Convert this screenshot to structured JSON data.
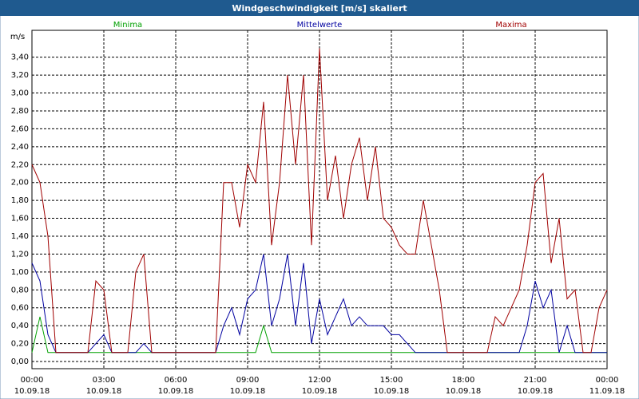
{
  "chart_data": {
    "type": "line",
    "title": "Windgeschwindigkeit [m/s] skaliert",
    "y_label": "m/s",
    "x": [
      0,
      20,
      40,
      60,
      80,
      100,
      120,
      140,
      160,
      180,
      200,
      220,
      240,
      260,
      280,
      300,
      320,
      340,
      360,
      380,
      400,
      420,
      440,
      460,
      480,
      500,
      520,
      540,
      560,
      580,
      600,
      620,
      640,
      660,
      680,
      700,
      720,
      740,
      760,
      780,
      800,
      820,
      840,
      860,
      880,
      900,
      920,
      940,
      960,
      980,
      1000,
      1020,
      1040,
      1060,
      1080,
      1100,
      1120,
      1140,
      1160,
      1180,
      1200,
      1220,
      1240,
      1260,
      1280,
      1300,
      1320,
      1340,
      1360,
      1380,
      1400,
      1420,
      1440
    ],
    "series": [
      {
        "name": "Minima",
        "color": "#00a000",
        "values": [
          0.1,
          0.5,
          0.1,
          0.1,
          0.1,
          0.1,
          0.1,
          0.1,
          0.1,
          0.1,
          0.1,
          0.1,
          0.1,
          0.1,
          0.1,
          0.1,
          0.1,
          0.1,
          0.1,
          0.1,
          0.1,
          0.1,
          0.1,
          0.1,
          0.1,
          0.1,
          0.1,
          0.1,
          0.1,
          0.4,
          0.1,
          0.1,
          0.1,
          0.1,
          0.1,
          0.1,
          0.1,
          0.1,
          0.1,
          0.1,
          0.1,
          0.1,
          0.1,
          0.1,
          0.1,
          0.1,
          0.1,
          0.1,
          0.1,
          0.1,
          0.1,
          0.1,
          0.1,
          0.1,
          0.1,
          0.1,
          0.1,
          0.1,
          0.1,
          0.1,
          0.1,
          0.1,
          0.1,
          0.1,
          0.1,
          0.1,
          0.1,
          0.1,
          0.1,
          0.1,
          0.1,
          0.1,
          0.1
        ]
      },
      {
        "name": "Mittelwerte",
        "color": "#0000a0",
        "values": [
          1.1,
          0.9,
          0.3,
          0.1,
          0.1,
          0.1,
          0.1,
          0.1,
          0.2,
          0.3,
          0.1,
          0.1,
          0.1,
          0.1,
          0.2,
          0.1,
          0.1,
          0.1,
          0.1,
          0.1,
          0.1,
          0.1,
          0.1,
          0.1,
          0.4,
          0.6,
          0.3,
          0.7,
          0.8,
          1.2,
          0.4,
          0.7,
          1.2,
          0.4,
          1.1,
          0.2,
          0.7,
          0.3,
          0.5,
          0.7,
          0.4,
          0.5,
          0.4,
          0.4,
          0.4,
          0.3,
          0.3,
          0.2,
          0.1,
          0.1,
          0.1,
          0.1,
          0.1,
          0.1,
          0.1,
          0.1,
          0.1,
          0.1,
          0.1,
          0.1,
          0.1,
          0.1,
          0.4,
          0.9,
          0.6,
          0.8,
          0.1,
          0.4,
          0.1,
          0.1,
          0.1,
          0.1,
          0.1
        ]
      },
      {
        "name": "Maxima",
        "color": "#a00000",
        "values": [
          2.2,
          2.0,
          1.4,
          0.1,
          0.1,
          0.1,
          0.1,
          0.1,
          0.9,
          0.8,
          0.1,
          0.1,
          0.1,
          1.0,
          1.2,
          0.1,
          0.1,
          0.1,
          0.1,
          0.1,
          0.1,
          0.1,
          0.1,
          0.1,
          2.0,
          2.0,
          1.5,
          2.2,
          2.0,
          2.9,
          1.3,
          2.0,
          3.2,
          2.2,
          3.2,
          1.3,
          3.5,
          1.8,
          2.3,
          1.6,
          2.2,
          2.5,
          1.8,
          2.4,
          1.6,
          1.5,
          1.3,
          1.2,
          1.2,
          1.8,
          1.3,
          0.8,
          0.1,
          0.1,
          0.1,
          0.1,
          0.1,
          0.1,
          0.5,
          0.4,
          0.6,
          0.8,
          1.3,
          2.0,
          2.1,
          1.1,
          1.6,
          0.7,
          0.8,
          0.1,
          0.1,
          0.6,
          0.8
        ]
      }
    ],
    "xlim": [
      0,
      1440
    ],
    "xticks": [
      {
        "value": 0,
        "label": [
          "00:00",
          "10.09.18"
        ]
      },
      {
        "value": 180,
        "label": [
          "03:00",
          "10.09.18"
        ]
      },
      {
        "value": 360,
        "label": [
          "06:00",
          "10.09.18"
        ]
      },
      {
        "value": 540,
        "label": [
          "09:00",
          "10.09.18"
        ]
      },
      {
        "value": 720,
        "label": [
          "12:00",
          "10.09.18"
        ]
      },
      {
        "value": 900,
        "label": [
          "15:00",
          "10.09.18"
        ]
      },
      {
        "value": 1080,
        "label": [
          "18:00",
          "10.09.18"
        ]
      },
      {
        "value": 1260,
        "label": [
          "21:00",
          "10.09.18"
        ]
      },
      {
        "value": 1440,
        "label": [
          "00:00",
          "11.09.18"
        ]
      }
    ],
    "ylim": [
      -0.08,
      3.7
    ],
    "yticks": [
      {
        "value": 0,
        "label": "0,00"
      },
      {
        "value": 0.2,
        "label": "0,20"
      },
      {
        "value": 0.4,
        "label": "0,40"
      },
      {
        "value": 0.6,
        "label": "0,60"
      },
      {
        "value": 0.8,
        "label": "0,80"
      },
      {
        "value": 1,
        "label": "1,00"
      },
      {
        "value": 1.2,
        "label": "1,20"
      },
      {
        "value": 1.4,
        "label": "1,40"
      },
      {
        "value": 1.6,
        "label": "1,60"
      },
      {
        "value": 1.8,
        "label": "1,80"
      },
      {
        "value": 2,
        "label": "2,00"
      },
      {
        "value": 2.2,
        "label": "2,20"
      },
      {
        "value": 2.4,
        "label": "2,40"
      },
      {
        "value": 2.6,
        "label": "2,60"
      },
      {
        "value": 2.8,
        "label": "2,80"
      },
      {
        "value": 3,
        "label": "3,00"
      },
      {
        "value": 3.2,
        "label": "3,20"
      },
      {
        "value": 3.4,
        "label": "3,40"
      }
    ],
    "grid": true
  }
}
